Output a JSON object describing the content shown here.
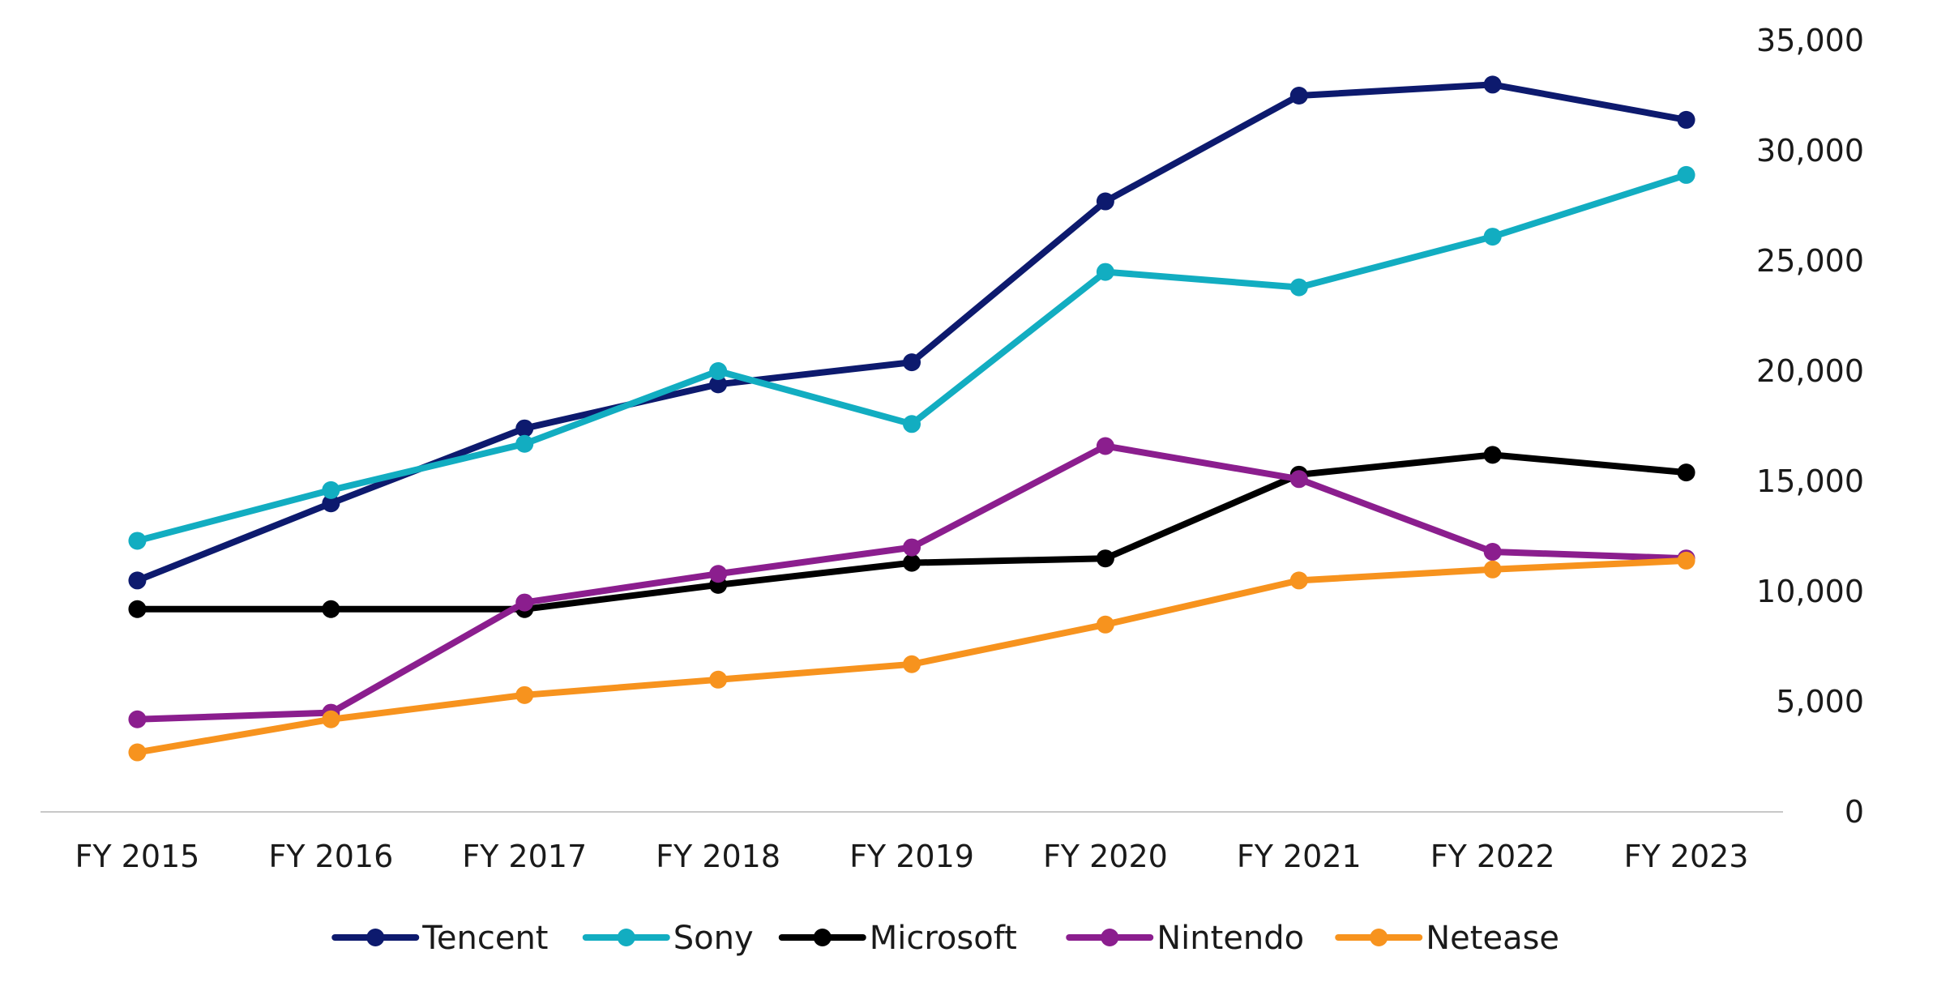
{
  "chart_data": {
    "type": "line",
    "title": "",
    "xlabel": "",
    "ylabel": "",
    "categories": [
      "FY 2015",
      "FY 2016",
      "FY 2017",
      "FY 2018",
      "FY 2019",
      "FY 2020",
      "FY 2021",
      "FY 2022",
      "FY 2023"
    ],
    "ylim": [
      0,
      35000
    ],
    "yticks": [
      0,
      5000,
      10000,
      15000,
      20000,
      25000,
      30000,
      35000
    ],
    "ytick_labels": [
      "0",
      "5,000",
      "10,000",
      "15,000",
      "20,000",
      "25,000",
      "30,000",
      "35,000"
    ],
    "y_axis_side": "right",
    "grid": false,
    "legend_position": "bottom-center",
    "series": [
      {
        "name": "Tencent",
        "color": "#0d1a6e",
        "values": [
          10500,
          14000,
          17400,
          19400,
          20400,
          27700,
          32500,
          33000,
          31400
        ]
      },
      {
        "name": "Sony",
        "color": "#12adc1",
        "values": [
          12300,
          14600,
          16700,
          20000,
          17600,
          24500,
          23800,
          26100,
          28900
        ]
      },
      {
        "name": "Microsoft",
        "color": "#000000",
        "values": [
          9200,
          9200,
          9200,
          10300,
          11300,
          11500,
          15300,
          16200,
          15400
        ]
      },
      {
        "name": "Nintendo",
        "color": "#8b1e8e",
        "values": [
          4200,
          4500,
          9500,
          10800,
          12000,
          16600,
          15100,
          11800,
          11500
        ]
      },
      {
        "name": "Netease",
        "color": "#f7931e",
        "values": [
          2700,
          4200,
          5300,
          6000,
          6700,
          8500,
          10500,
          11000,
          11400
        ]
      }
    ]
  }
}
